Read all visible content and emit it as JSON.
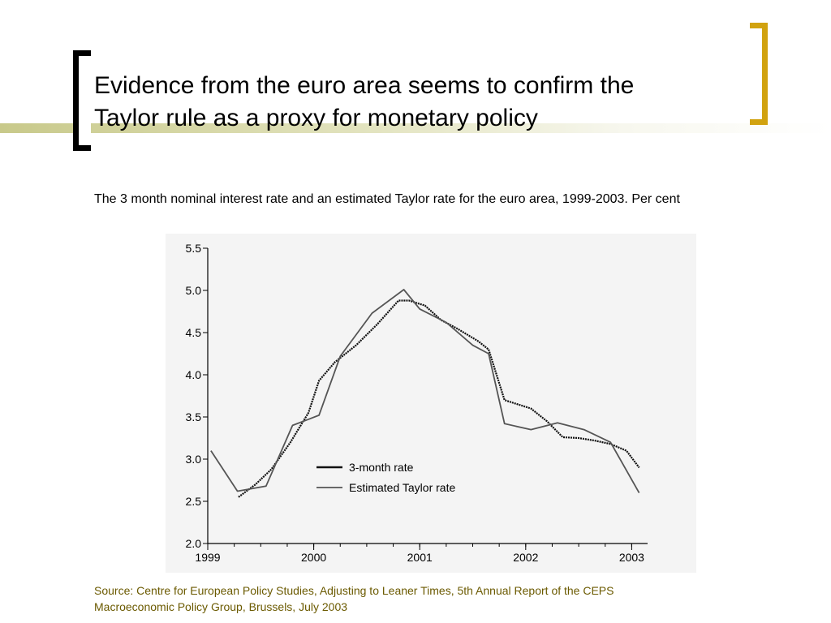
{
  "slide": {
    "title_lines": [
      "Evidence from the euro area seems to confirm the",
      "Taylor rule as a proxy for monetary policy"
    ],
    "subtitle": "The 3 month nominal interest rate and an estimated Taylor rate for the euro area, 1999-2003. Per cent",
    "source_lines": [
      "Source: Centre for European Policy Studies, Adjusting to Leaner Times, 5th Annual Report of the CEPS",
      "Macroeconomic Policy Group, Brussels, July 2003"
    ],
    "colors": {
      "accent_bar": "#c8c98a",
      "left_bracket": "#000000",
      "right_bracket": "#d1a20f",
      "source_text": "#6b5a00"
    }
  },
  "chart_data": {
    "type": "line",
    "xlim": [
      1999,
      2003.15
    ],
    "ylim": [
      2.0,
      5.5
    ],
    "x_ticks": [
      1999,
      2000,
      2001,
      2002,
      2003
    ],
    "x_tick_labels": [
      "1999",
      "2000",
      "2001",
      "2002",
      "2003"
    ],
    "y_ticks": [
      2.0,
      2.5,
      3.0,
      3.5,
      4.0,
      4.5,
      5.0,
      5.5
    ],
    "y_tick_labels": [
      "2.0",
      "2.5",
      "3.0",
      "3.5",
      "4.0",
      "4.5",
      "5.0",
      "5.5"
    ],
    "grid": false,
    "legend_position": "bottom-center",
    "series": [
      {
        "name": "3-month rate",
        "color": "#111111",
        "x": [
          1999.29,
          1999.45,
          1999.6,
          1999.78,
          1999.95,
          2000.05,
          2000.2,
          2000.4,
          2000.6,
          2000.8,
          2000.9,
          2001.05,
          2001.2,
          2001.35,
          2001.55,
          2001.65,
          2001.8,
          2002.05,
          2002.2,
          2002.35,
          2002.5,
          2002.65,
          2002.8,
          2002.95,
          2003.07
        ],
        "y": [
          2.55,
          2.7,
          2.88,
          3.2,
          3.55,
          3.93,
          4.15,
          4.35,
          4.6,
          4.88,
          4.88,
          4.82,
          4.65,
          4.55,
          4.4,
          4.3,
          3.7,
          3.6,
          3.45,
          3.26,
          3.25,
          3.22,
          3.18,
          3.1,
          2.9
        ]
      },
      {
        "name": "Estimated Taylor rate",
        "color": "#555555",
        "x": [
          1999.03,
          1999.28,
          1999.55,
          1999.8,
          2000.05,
          2000.25,
          2000.55,
          2000.85,
          2001.0,
          2001.25,
          2001.5,
          2001.65,
          2001.8,
          2002.05,
          2002.3,
          2002.55,
          2002.8,
          2003.07
        ],
        "y": [
          3.1,
          2.62,
          2.68,
          3.4,
          3.52,
          4.22,
          4.73,
          5.01,
          4.78,
          4.62,
          4.35,
          4.25,
          3.42,
          3.35,
          3.43,
          3.35,
          3.2,
          2.6
        ]
      }
    ]
  }
}
